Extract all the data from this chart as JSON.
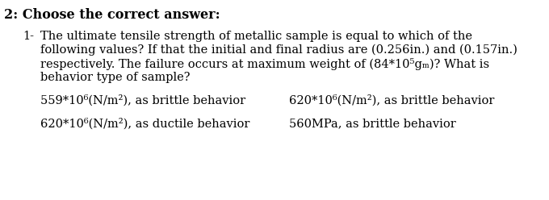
{
  "background_color": "#ffffff",
  "header": "2: Choose the correct answer:",
  "question_number": "1-",
  "question_line1": "The ultimate tensile strength of metallic sample is equal to which of the",
  "question_line2": "following values? If that the initial and final radius are (0.256in.) and (0.157in.)",
  "question_line3": "respectively. The failure occurs at maximum weight of (84*10⁵gₘ)? What is",
  "question_line4": "behavior type of sample?",
  "option_a": "559*10⁶(N/m²), as brittle behavior",
  "option_b": "620*10⁶(N/m²), as brittle behavior",
  "option_c": "620*10⁶(N/m²), as ductile behavior",
  "option_d": "560MPa, as brittle behavior",
  "header_fontsize": 11.5,
  "text_fontsize": 10.5,
  "option_fontsize": 10.5
}
